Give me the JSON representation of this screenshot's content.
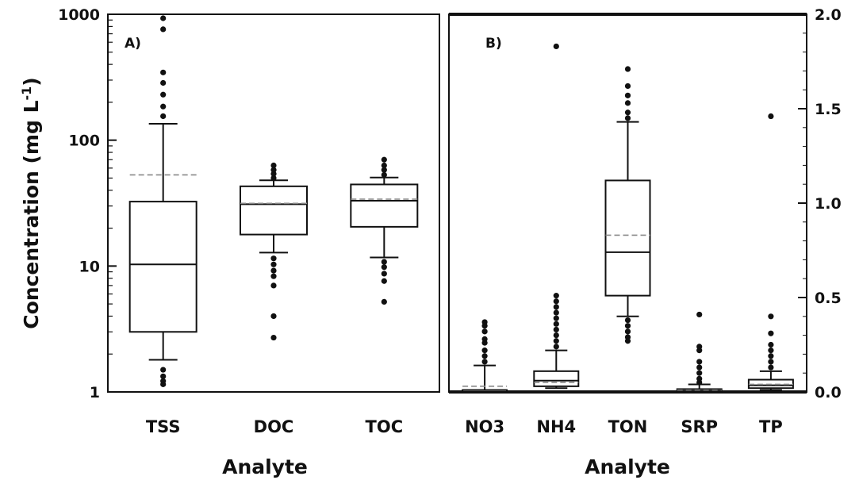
{
  "chart_data": [
    {
      "panel": "A)",
      "type": "box",
      "scale": "log",
      "ylabel_base": "Concentration (mg L",
      "ylabel_exp": "-1",
      "ylabel_close": ")",
      "xlabel": "Analyte",
      "ylim": [
        1,
        1000
      ],
      "yticks": [
        1,
        10,
        100,
        1000
      ],
      "ytick_labels": [
        "1",
        "10",
        "100",
        "1000"
      ],
      "categories": [
        "TSS",
        "DOC",
        "TOC"
      ],
      "boxes": [
        {
          "name": "TSS",
          "whisker_low": 1.8,
          "q1": 3.0,
          "median": 10.3,
          "q3": 32.5,
          "whisker_high": 135,
          "mean": 53,
          "outliers": [
            1.5,
            1.33,
            1.22,
            1.15,
            155,
            185,
            230,
            285,
            345,
            760,
            930
          ]
        },
        {
          "name": "DOC",
          "whisker_low": 12.8,
          "q1": 17.8,
          "median": 31,
          "q3": 43,
          "whisker_high": 48,
          "mean": 31.5,
          "outliers": [
            11.5,
            10.3,
            9.2,
            8.3,
            7.0,
            4.0,
            2.7,
            50,
            54,
            58,
            63
          ]
        },
        {
          "name": "TOC",
          "whisker_low": 11.7,
          "q1": 20.5,
          "median": 33,
          "q3": 44.5,
          "whisker_high": 50.5,
          "mean": 34,
          "outliers": [
            10.8,
            9.8,
            8.7,
            7.6,
            5.2,
            53,
            58,
            63,
            70
          ]
        }
      ]
    },
    {
      "panel": "B)",
      "type": "box",
      "scale": "linear",
      "xlabel": "Analyte",
      "ylim": [
        0,
        2.0
      ],
      "yticks": [
        0,
        0.5,
        1.0,
        1.5,
        2.0
      ],
      "ytick_labels": [
        "0.0",
        "0.5",
        "1.0",
        "1.5",
        "2.0"
      ],
      "categories": [
        "NO3",
        "NH4",
        "TON",
        "SRP",
        "TP"
      ],
      "boxes": [
        {
          "name": "NO3",
          "whisker_low": 0,
          "q1": 0.0,
          "median": 0.01,
          "q3": 0.01,
          "whisker_high": 0.14,
          "mean": 0.03,
          "outliers": [
            0.16,
            0.19,
            0.22,
            0.26,
            0.28,
            0.32,
            0.35,
            0.37
          ]
        },
        {
          "name": "NH4",
          "whisker_low": 0.02,
          "q1": 0.03,
          "median": 0.06,
          "q3": 0.11,
          "whisker_high": 0.22,
          "mean": 0.05,
          "outliers": [
            0.24,
            0.27,
            0.3,
            0.33,
            0.36,
            0.39,
            0.42,
            0.45,
            0.48,
            0.51,
            1.83
          ]
        },
        {
          "name": "TON",
          "whisker_low": 0.4,
          "q1": 0.51,
          "median": 0.74,
          "q3": 1.12,
          "whisker_high": 1.43,
          "mean": 0.83,
          "outliers": [
            0.38,
            0.35,
            0.32,
            0.29,
            0.27,
            1.45,
            1.48,
            1.53,
            1.57,
            1.62,
            1.71
          ]
        },
        {
          "name": "SRP",
          "whisker_low": 0,
          "q1": 0.0,
          "median": 0.005,
          "q3": 0.015,
          "whisker_high": 0.04,
          "mean": 0.01,
          "outliers": [
            0.05,
            0.07,
            0.1,
            0.13,
            0.16,
            0.22,
            0.24,
            0.41
          ]
        },
        {
          "name": "TP",
          "whisker_low": 0.01,
          "q1": 0.02,
          "median": 0.035,
          "q3": 0.065,
          "whisker_high": 0.11,
          "mean": 0.04,
          "outliers": [
            0.13,
            0.16,
            0.19,
            0.22,
            0.25,
            0.31,
            0.4,
            1.46
          ]
        }
      ]
    }
  ]
}
